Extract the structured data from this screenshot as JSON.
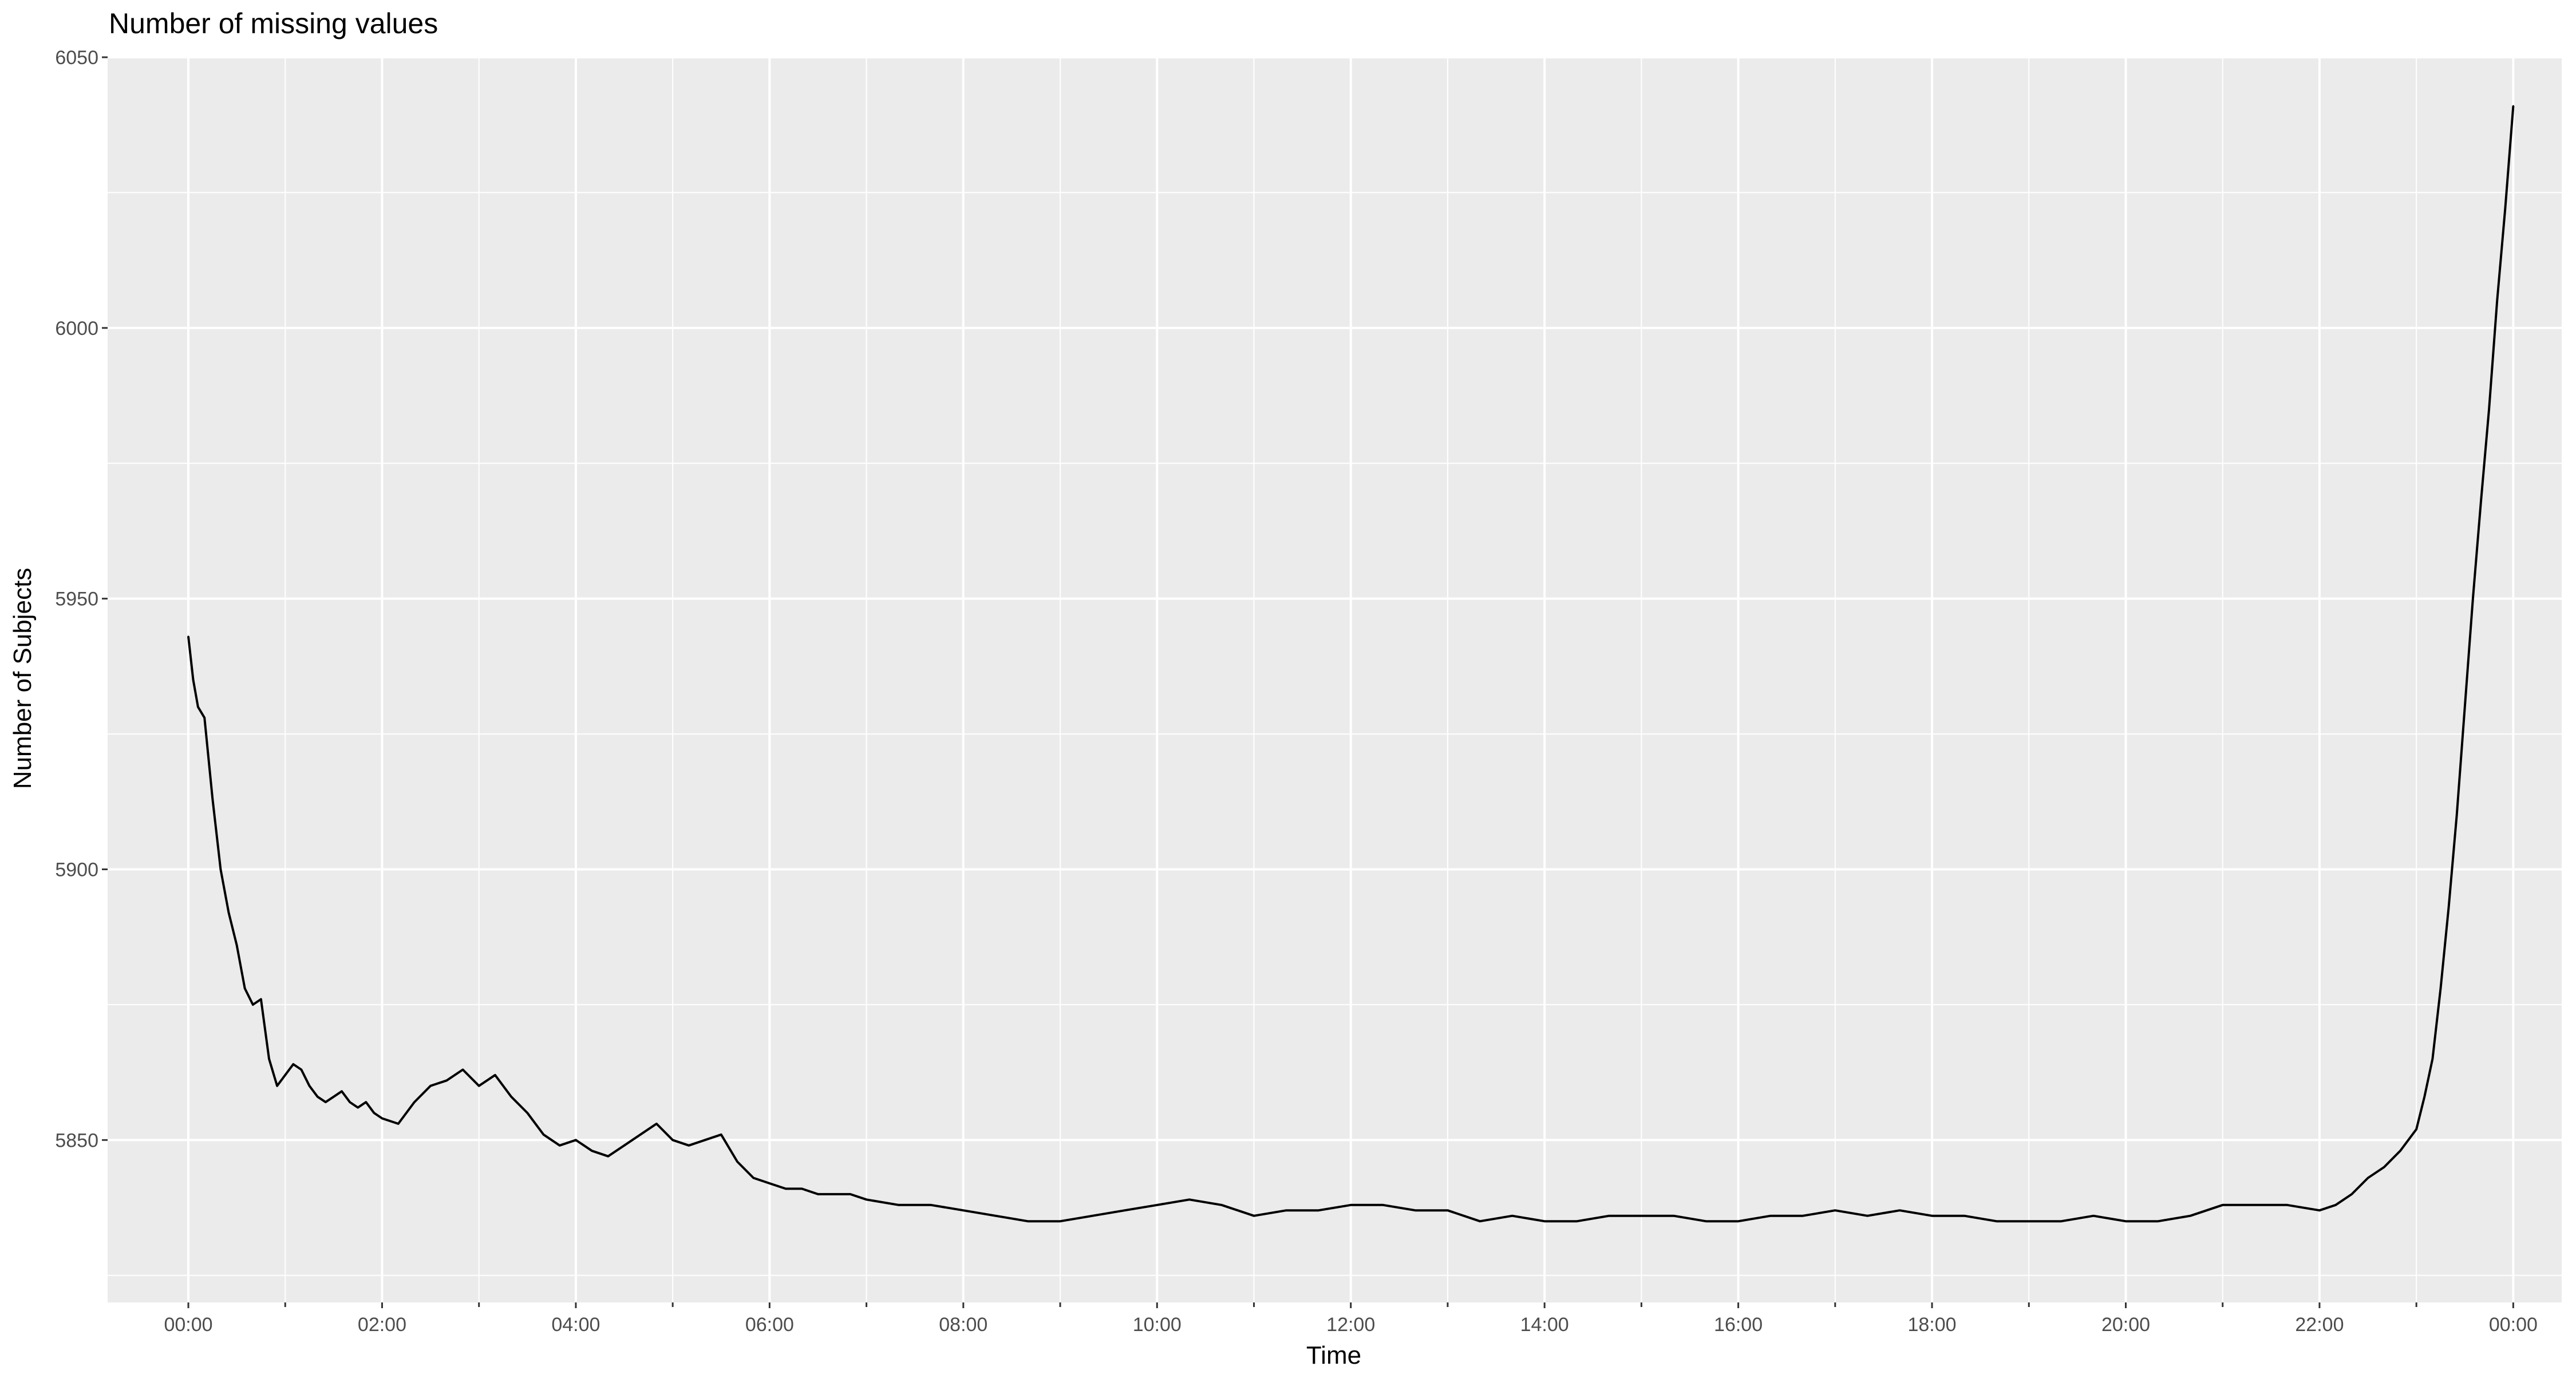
{
  "chart_data": {
    "type": "line",
    "title": "Number of missing values",
    "xlabel": "Time",
    "ylabel": "Number of Subjects",
    "x_unit": "time of day (HH:MM), spanning one full day",
    "xlim": [
      "23:10",
      "00:30 (next day)"
    ],
    "ylim": [
      5820,
      6050
    ],
    "x_ticks": [
      "00:00",
      "02:00",
      "04:00",
      "06:00",
      "08:00",
      "10:00",
      "12:00",
      "14:00",
      "16:00",
      "18:00",
      "20:00",
      "22:00",
      "00:00"
    ],
    "y_ticks": [
      "5850",
      "5900",
      "5950",
      "6000",
      "6050"
    ],
    "grid": true,
    "legend": "none",
    "series": [
      {
        "color": "#000000",
        "x": [
          "00:00",
          "00:03",
          "00:06",
          "00:10",
          "00:15",
          "00:20",
          "00:25",
          "00:30",
          "00:35",
          "00:40",
          "00:45",
          "00:50",
          "00:55",
          "01:00",
          "01:05",
          "01:10",
          "01:15",
          "01:20",
          "01:25",
          "01:30",
          "01:35",
          "01:40",
          "01:45",
          "01:50",
          "01:55",
          "02:00",
          "02:10",
          "02:20",
          "02:30",
          "02:40",
          "02:50",
          "03:00",
          "03:10",
          "03:20",
          "03:30",
          "03:40",
          "03:50",
          "04:00",
          "04:10",
          "04:20",
          "04:30",
          "04:40",
          "04:50",
          "05:00",
          "05:10",
          "05:20",
          "05:30",
          "05:40",
          "05:50",
          "06:00",
          "06:10",
          "06:20",
          "06:30",
          "06:40",
          "06:50",
          "07:00",
          "07:20",
          "07:40",
          "08:00",
          "08:20",
          "08:40",
          "09:00",
          "09:20",
          "09:40",
          "10:00",
          "10:20",
          "10:40",
          "11:00",
          "11:20",
          "11:40",
          "12:00",
          "12:20",
          "12:40",
          "13:00",
          "13:20",
          "13:40",
          "14:00",
          "14:20",
          "14:40",
          "15:00",
          "15:20",
          "15:40",
          "16:00",
          "16:20",
          "16:40",
          "17:00",
          "17:20",
          "17:40",
          "18:00",
          "18:20",
          "18:40",
          "19:00",
          "19:20",
          "19:40",
          "20:00",
          "20:20",
          "20:40",
          "21:00",
          "21:20",
          "21:40",
          "22:00",
          "22:10",
          "22:20",
          "22:30",
          "22:40",
          "22:50",
          "23:00",
          "23:05",
          "23:10",
          "23:15",
          "23:20",
          "23:25",
          "23:30",
          "23:35",
          "23:40",
          "23:45",
          "23:50",
          "23:55",
          "00:00"
        ],
        "values": [
          5943,
          5935,
          5930,
          5928,
          5913,
          5900,
          5892,
          5886,
          5878,
          5875,
          5876,
          5865,
          5860,
          5862,
          5864,
          5863,
          5860,
          5858,
          5857,
          5858,
          5859,
          5857,
          5856,
          5857,
          5855,
          5854,
          5853,
          5857,
          5860,
          5861,
          5863,
          5860,
          5862,
          5858,
          5855,
          5851,
          5849,
          5850,
          5848,
          5847,
          5849,
          5851,
          5853,
          5850,
          5849,
          5850,
          5851,
          5846,
          5843,
          5842,
          5841,
          5841,
          5840,
          5840,
          5840,
          5839,
          5838,
          5838,
          5837,
          5836,
          5835,
          5835,
          5836,
          5837,
          5838,
          5839,
          5838,
          5836,
          5837,
          5837,
          5838,
          5838,
          5837,
          5837,
          5835,
          5836,
          5835,
          5835,
          5836,
          5836,
          5836,
          5835,
          5835,
          5836,
          5836,
          5837,
          5836,
          5837,
          5836,
          5836,
          5835,
          5835,
          5835,
          5836,
          5835,
          5835,
          5836,
          5838,
          5838,
          5838,
          5837,
          5838,
          5840,
          5843,
          5845,
          5848,
          5852,
          5858,
          5865,
          5878,
          5893,
          5910,
          5930,
          5950,
          5968,
          5985,
          6005,
          6022,
          6041
        ]
      }
    ]
  }
}
